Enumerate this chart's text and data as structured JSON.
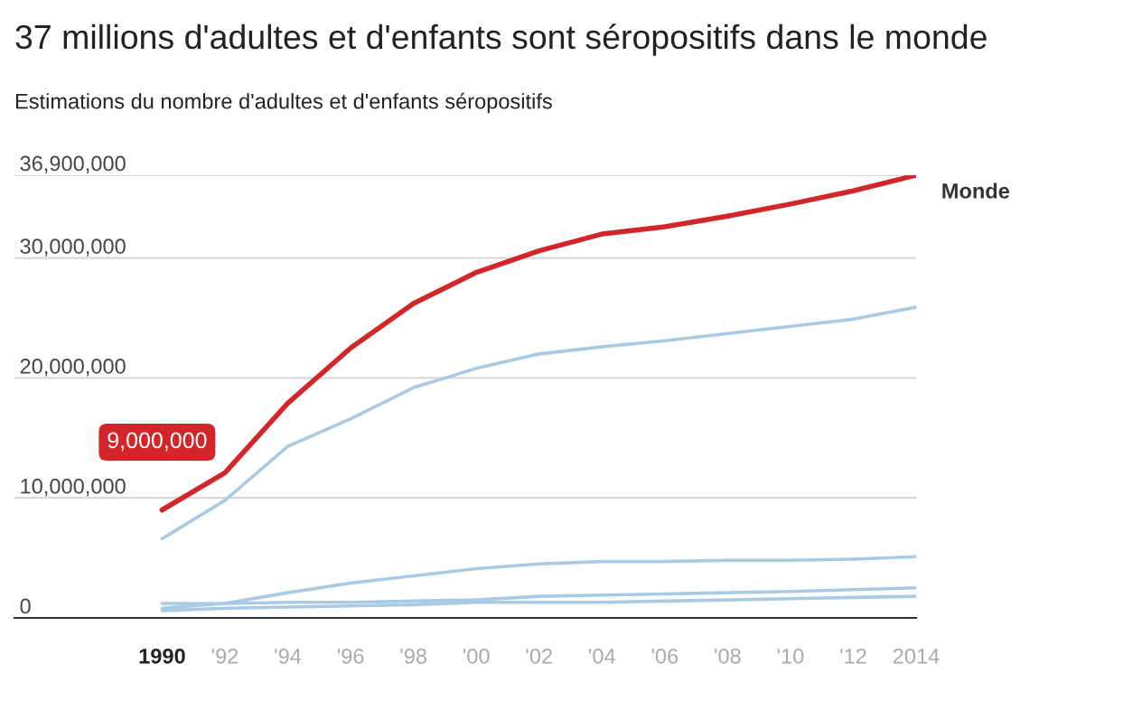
{
  "chart_data": {
    "type": "line",
    "title": "37 millions d'adultes et d'enfants sont séropositifs dans le monde",
    "subtitle": "Estimations du nombre d'adultes et d'enfants séropositifs",
    "x": [
      1990,
      1992,
      1994,
      1996,
      1998,
      2000,
      2002,
      2004,
      2006,
      2008,
      2010,
      2012,
      2014
    ],
    "series": [
      {
        "color": "#a9cae3",
        "values": [
          6600000,
          9800000,
          14300000,
          16600000,
          19200000,
          20800000,
          22000000,
          22600000,
          23100000,
          23700000,
          24300000,
          24900000,
          25900000
        ]
      },
      {
        "color": "#a9cae3",
        "values": [
          800000,
          1200000,
          2100000,
          2900000,
          3500000,
          4100000,
          4500000,
          4700000,
          4700000,
          4800000,
          4800000,
          4900000,
          5100000
        ]
      },
      {
        "color": "#a9cae3",
        "values": [
          1200000,
          1200000,
          1300000,
          1300000,
          1400000,
          1500000,
          1800000,
          1900000,
          2000000,
          2100000,
          2200000,
          2350000,
          2500000
        ]
      },
      {
        "color": "#a9cae3",
        "values": [
          600000,
          800000,
          900000,
          1000000,
          1100000,
          1300000,
          1300000,
          1300000,
          1400000,
          1500000,
          1600000,
          1700000,
          1800000
        ]
      },
      {
        "name": "Monde",
        "color": "#d3262a",
        "values": [
          9000000,
          12100000,
          17900000,
          22500000,
          26200000,
          28800000,
          30600000,
          32000000,
          32600000,
          33500000,
          34500000,
          35600000,
          36900000
        ]
      }
    ],
    "xlim": [
      1985.3,
      2014
    ],
    "xticks": [
      {
        "value": 1990,
        "label": "1990"
      },
      {
        "value": 1992,
        "label": "'92"
      },
      {
        "value": 1994,
        "label": "'94"
      },
      {
        "value": 1996,
        "label": "'96"
      },
      {
        "value": 1998,
        "label": "'98"
      },
      {
        "value": 2000,
        "label": "'00"
      },
      {
        "value": 2002,
        "label": "'02"
      },
      {
        "value": 2004,
        "label": "'04"
      },
      {
        "value": 2006,
        "label": "'06"
      },
      {
        "value": 2008,
        "label": "'08"
      },
      {
        "value": 2010,
        "label": "'10"
      },
      {
        "value": 2012,
        "label": "'12"
      },
      {
        "value": 2014,
        "label": "2014"
      }
    ],
    "ylim": [
      0,
      36900000
    ],
    "yticks": [
      {
        "value": 0,
        "label": "0"
      },
      {
        "value": 10000000,
        "label": "10,000,000"
      },
      {
        "value": 20000000,
        "label": "20,000,000"
      },
      {
        "value": 30000000,
        "label": "30,000,000"
      },
      {
        "value": 36900000,
        "label": "36,900,000"
      }
    ],
    "annotations": [
      {
        "text": "9,000,000",
        "x": 1990,
        "y": 9000000
      }
    ],
    "grid": "y",
    "legend": false,
    "marker": "none",
    "line_style": "solid"
  }
}
